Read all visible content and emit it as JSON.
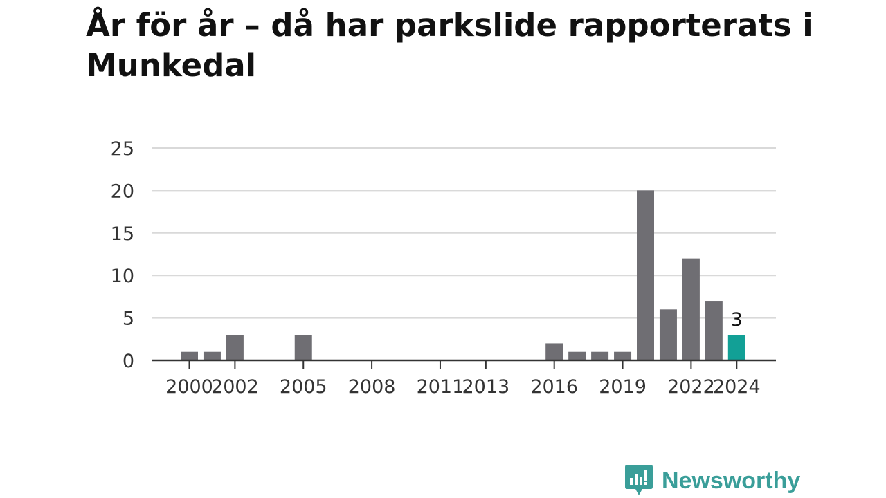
{
  "title": "År för år – då har parkslide rapporterats i Munkedal",
  "brand": {
    "name": "Newsworthy",
    "color": "#3a9e99",
    "icon": "newsworthy-logo-icon"
  },
  "colors": {
    "bar": "#6f6e73",
    "highlight": "#12a096",
    "grid": "#d9d9d9",
    "axis": "#333333",
    "text": "#333333"
  },
  "chart_data": {
    "type": "bar",
    "title": "År för år – då har parkslide rapporterats i Munkedal",
    "xlabel": "",
    "ylabel": "",
    "ylim": [
      0,
      25
    ],
    "yticks": [
      0,
      5,
      10,
      15,
      20,
      25
    ],
    "grid": true,
    "categories": [
      2000,
      2001,
      2002,
      2003,
      2004,
      2005,
      2006,
      2007,
      2008,
      2009,
      2010,
      2011,
      2012,
      2013,
      2014,
      2015,
      2016,
      2017,
      2018,
      2019,
      2020,
      2021,
      2022,
      2023,
      2024
    ],
    "values": [
      1,
      1,
      3,
      0,
      0,
      3,
      0,
      0,
      0,
      0,
      0,
      0,
      0,
      0,
      0,
      0,
      2,
      1,
      1,
      1,
      20,
      6,
      12,
      7,
      3
    ],
    "xtick_labels": [
      "2000",
      "2002",
      "2005",
      "2008",
      "2011",
      "2013",
      "2016",
      "2019",
      "2022",
      "2024"
    ],
    "highlight": {
      "category": 2024,
      "label": "3"
    }
  }
}
